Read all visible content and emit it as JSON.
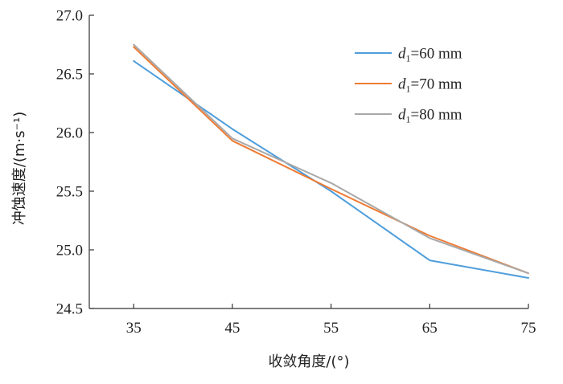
{
  "chart_data": {
    "type": "line",
    "title": "",
    "xlabel": "收敛角度/(°)",
    "ylabel": "冲蚀速度/(m·s⁻¹)",
    "x": [
      35,
      45,
      55,
      65,
      75
    ],
    "xlim": [
      30.5,
      75
    ],
    "ylim": [
      24.5,
      27.0
    ],
    "x_ticks": [
      "35",
      "45",
      "55",
      "65",
      "75"
    ],
    "y_ticks": [
      "24.5",
      "25.0",
      "25.5",
      "26.0",
      "26.5",
      "27.0"
    ],
    "grid": false,
    "legend_position": "top-right",
    "series": [
      {
        "name": "d1=60 mm",
        "legend_var": "d",
        "legend_sub": "1",
        "legend_rest": "=60 mm",
        "color": "#4f9edc",
        "values": [
          26.61,
          26.03,
          25.5,
          24.91,
          24.76
        ]
      },
      {
        "name": "d1=70 mm",
        "legend_var": "d",
        "legend_sub": "1",
        "legend_rest": "=70 mm",
        "color": "#ee7b34",
        "values": [
          26.73,
          25.93,
          25.52,
          25.12,
          24.8
        ]
      },
      {
        "name": "d1=80 mm",
        "legend_var": "d",
        "legend_sub": "1",
        "legend_rest": "=80 mm",
        "color": "#a8a8a8",
        "values": [
          26.75,
          25.95,
          25.57,
          25.1,
          24.8
        ]
      }
    ]
  }
}
